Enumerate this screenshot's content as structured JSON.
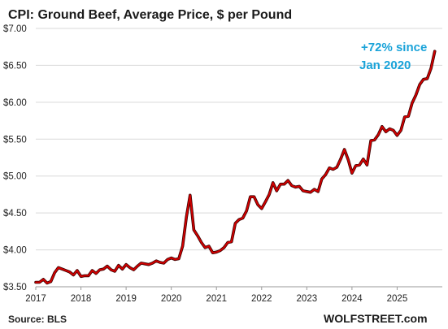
{
  "chart_data": {
    "type": "line",
    "title": "CPI: Ground Beef, Average Price, $ per Pound",
    "xlabel": "",
    "ylabel": "",
    "xlim": [
      2017.0,
      2026.0
    ],
    "ylim": [
      3.5,
      7.0
    ],
    "grid": "horizontal",
    "legend": "none",
    "y_ticks": [
      "$3.50",
      "$4.00",
      "$4.50",
      "$5.00",
      "$5.50",
      "$6.00",
      "$6.50",
      "$7.00"
    ],
    "y_tick_values": [
      3.5,
      4.0,
      4.5,
      5.0,
      5.5,
      6.0,
      6.5,
      7.0
    ],
    "x_ticks": [
      "2017",
      "2018",
      "2019",
      "2020",
      "2021",
      "2022",
      "2023",
      "2024",
      "2025"
    ],
    "x_tick_values": [
      2017,
      2018,
      2019,
      2020,
      2021,
      2022,
      2023,
      2024,
      2025
    ],
    "line_color": "#d40000",
    "annotation": {
      "lines": [
        "+72% since",
        "Jan 2020"
      ],
      "color": "#1aa3d9"
    },
    "series": [
      {
        "x": [
          2017.0,
          2017.083,
          2017.167,
          2017.25,
          2017.333,
          2017.417,
          2017.5,
          2017.583,
          2017.667,
          2017.75,
          2017.833,
          2017.917,
          2018.0,
          2018.083,
          2018.167,
          2018.25,
          2018.333,
          2018.417,
          2018.5,
          2018.583,
          2018.667,
          2018.75,
          2018.833,
          2018.917,
          2019.0,
          2019.083,
          2019.167,
          2019.25,
          2019.333,
          2019.417,
          2019.5,
          2019.583,
          2019.667,
          2019.75,
          2019.833,
          2019.917,
          2020.0,
          2020.083,
          2020.167,
          2020.25,
          2020.333,
          2020.417,
          2020.5,
          2020.583,
          2020.667,
          2020.75,
          2020.833,
          2020.917,
          2021.0,
          2021.083,
          2021.167,
          2021.25,
          2021.333,
          2021.417,
          2021.5,
          2021.583,
          2021.667,
          2021.75,
          2021.833,
          2021.917,
          2022.0,
          2022.083,
          2022.167,
          2022.25,
          2022.333,
          2022.417,
          2022.5,
          2022.583,
          2022.667,
          2022.75,
          2022.833,
          2022.917,
          2023.0,
          2023.083,
          2023.167,
          2023.25,
          2023.333,
          2023.417,
          2023.5,
          2023.583,
          2023.667,
          2023.75,
          2023.833,
          2023.917,
          2024.0,
          2024.083,
          2024.167,
          2024.25,
          2024.333,
          2024.417,
          2024.5,
          2024.583,
          2024.667,
          2024.75,
          2024.833,
          2024.917,
          2025.0,
          2025.083,
          2025.167,
          2025.25,
          2025.333,
          2025.417,
          2025.5,
          2025.583,
          2025.667,
          2025.75,
          2025.833
        ],
        "y": [
          3.56,
          3.56,
          3.6,
          3.55,
          3.57,
          3.69,
          3.76,
          3.74,
          3.72,
          3.7,
          3.66,
          3.72,
          3.64,
          3.65,
          3.65,
          3.72,
          3.68,
          3.73,
          3.74,
          3.78,
          3.73,
          3.71,
          3.79,
          3.74,
          3.8,
          3.76,
          3.73,
          3.78,
          3.82,
          3.81,
          3.8,
          3.82,
          3.85,
          3.83,
          3.82,
          3.87,
          3.89,
          3.87,
          3.88,
          4.05,
          4.44,
          4.74,
          4.27,
          4.19,
          4.1,
          4.03,
          4.05,
          3.96,
          3.97,
          3.99,
          4.03,
          4.1,
          4.11,
          4.36,
          4.41,
          4.43,
          4.53,
          4.72,
          4.72,
          4.61,
          4.56,
          4.65,
          4.75,
          4.91,
          4.8,
          4.89,
          4.89,
          4.94,
          4.87,
          4.85,
          4.86,
          4.8,
          4.79,
          4.78,
          4.82,
          4.79,
          4.96,
          5.02,
          5.11,
          5.09,
          5.12,
          5.23,
          5.36,
          5.22,
          5.04,
          5.14,
          5.15,
          5.23,
          5.15,
          5.48,
          5.49,
          5.56,
          5.67,
          5.6,
          5.64,
          5.62,
          5.55,
          5.62,
          5.8,
          5.81,
          5.99,
          6.1,
          6.24,
          6.31,
          6.32,
          6.46,
          6.69
        ]
      }
    ]
  },
  "footer": {
    "source": "Source: BLS",
    "brand": "WOLFSTREET.com"
  }
}
